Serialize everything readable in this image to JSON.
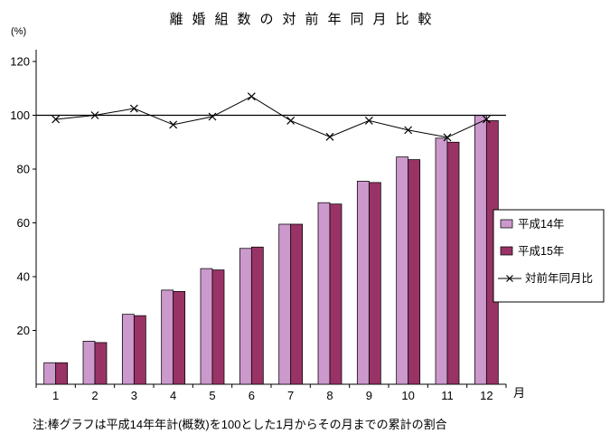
{
  "chart_data": {
    "type": "bar",
    "title": "離婚組数の対前年同月比較",
    "ylabel": "(%)",
    "xlabel": "月",
    "ylim": [
      0,
      120
    ],
    "yticks": [
      20,
      40,
      60,
      80,
      100,
      120
    ],
    "reference_line": 100,
    "grid": "off",
    "legend_position": "middle-right",
    "categories": [
      "1",
      "2",
      "3",
      "4",
      "5",
      "6",
      "7",
      "8",
      "9",
      "10",
      "11",
      "12"
    ],
    "series": [
      {
        "name": "平成14年",
        "type": "bar",
        "color": "#CC99CC",
        "values": [
          8,
          16,
          26,
          35,
          43,
          50.5,
          59.5,
          67.5,
          75.5,
          84.5,
          91.5,
          100
        ]
      },
      {
        "name": "平成15年",
        "type": "bar",
        "color": "#993366",
        "values": [
          8,
          15.5,
          25.5,
          34.5,
          42.5,
          51,
          59.5,
          67,
          75,
          83.5,
          90,
          98
        ]
      },
      {
        "name": "対前年同月比",
        "type": "line",
        "color": "#000000",
        "marker": "x",
        "values": [
          98.5,
          100,
          102.5,
          96.5,
          99.5,
          107,
          98,
          92,
          98,
          94.5,
          91.8,
          98.5
        ]
      }
    ],
    "note": "注:棒グラフは平成14年年計(概数)を100とした1月からその月までの累計の割合",
    "colors": {
      "axis": "#000000",
      "background": "#FFFFFF"
    }
  }
}
